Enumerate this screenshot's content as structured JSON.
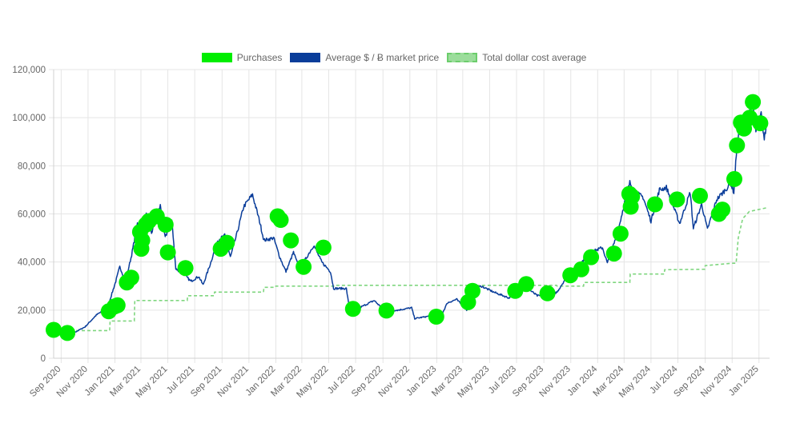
{
  "legend": {
    "purchases": "Purchases",
    "price": "Average $ / Ƀ market price",
    "cost": "Total dollar cost average"
  },
  "colors": {
    "purchases": "#00ee00",
    "price": "#0a3d9a",
    "cost": "#7fd67f",
    "grid": "#e5e5e5"
  },
  "chart_data": {
    "type": "line",
    "ylim": [
      0,
      120000
    ],
    "yticks": [
      0,
      20000,
      40000,
      60000,
      80000,
      100000,
      120000
    ],
    "ytick_labels": [
      "0",
      "20,000",
      "40,000",
      "60,000",
      "80,000",
      "100,000",
      "120,000"
    ],
    "x_range": [
      "2020-08-15",
      "2025-01-25"
    ],
    "xtick_labels": [
      {
        "date": "2020-09-01",
        "label": "Sep 2020"
      },
      {
        "date": "2020-11-01",
        "label": "Nov 2020"
      },
      {
        "date": "2021-01-01",
        "label": "Jan 2021"
      },
      {
        "date": "2021-03-01",
        "label": "Mar 2021"
      },
      {
        "date": "2021-05-01",
        "label": "May 2021"
      },
      {
        "date": "2021-07-01",
        "label": "Jul 2021"
      },
      {
        "date": "2021-09-01",
        "label": "Sep 2021"
      },
      {
        "date": "2021-11-01",
        "label": "Nov 2021"
      },
      {
        "date": "2022-01-01",
        "label": "Jan 2022"
      },
      {
        "date": "2022-03-01",
        "label": "Mar 2022"
      },
      {
        "date": "2022-05-01",
        "label": "May 2022"
      },
      {
        "date": "2022-07-01",
        "label": "Jul 2022"
      },
      {
        "date": "2022-09-01",
        "label": "Sep 2022"
      },
      {
        "date": "2022-11-01",
        "label": "Nov 2022"
      },
      {
        "date": "2023-01-01",
        "label": "Jan 2023"
      },
      {
        "date": "2023-03-01",
        "label": "Mar 2023"
      },
      {
        "date": "2023-05-01",
        "label": "May 2023"
      },
      {
        "date": "2023-07-01",
        "label": "Jul 2023"
      },
      {
        "date": "2023-09-01",
        "label": "Sep 2023"
      },
      {
        "date": "2023-11-01",
        "label": "Nov 2023"
      },
      {
        "date": "2024-01-01",
        "label": "Jan 2024"
      },
      {
        "date": "2024-03-01",
        "label": "Mar 2024"
      },
      {
        "date": "2024-05-01",
        "label": "May 2024"
      },
      {
        "date": "2024-07-01",
        "label": "Jul 2024"
      },
      {
        "date": "2024-09-01",
        "label": "Sep 2024"
      },
      {
        "date": "2024-11-01",
        "label": "Nov 2024"
      },
      {
        "date": "2025-01-01",
        "label": "Jan 2025"
      }
    ],
    "series": [
      {
        "name": "Average $ / Ƀ market price",
        "type": "line",
        "points": [
          [
            "2020-08-15",
            11800
          ],
          [
            "2020-09-05",
            10200
          ],
          [
            "2020-10-01",
            10700
          ],
          [
            "2020-10-25",
            13000
          ],
          [
            "2020-11-20",
            18000
          ],
          [
            "2020-12-15",
            21000
          ],
          [
            "2021-01-03",
            32000
          ],
          [
            "2021-01-12",
            38000
          ],
          [
            "2021-01-25",
            32000
          ],
          [
            "2021-02-08",
            43000
          ],
          [
            "2021-02-21",
            56000
          ],
          [
            "2021-02-28",
            45000
          ],
          [
            "2021-03-13",
            60000
          ],
          [
            "2021-03-25",
            52000
          ],
          [
            "2021-04-14",
            63500
          ],
          [
            "2021-04-25",
            50000
          ],
          [
            "2021-05-10",
            58000
          ],
          [
            "2021-05-19",
            37000
          ],
          [
            "2021-06-01",
            36000
          ],
          [
            "2021-06-22",
            32000
          ],
          [
            "2021-07-10",
            34000
          ],
          [
            "2021-07-20",
            30500
          ],
          [
            "2021-08-05",
            39000
          ],
          [
            "2021-08-22",
            49000
          ],
          [
            "2021-09-07",
            51000
          ],
          [
            "2021-09-20",
            42000
          ],
          [
            "2021-10-05",
            52000
          ],
          [
            "2021-10-20",
            63000
          ],
          [
            "2021-11-09",
            68000
          ],
          [
            "2021-11-25",
            57000
          ],
          [
            "2021-12-05",
            49000
          ],
          [
            "2021-12-27",
            50000
          ],
          [
            "2022-01-10",
            42000
          ],
          [
            "2022-01-24",
            36000
          ],
          [
            "2022-02-10",
            44000
          ],
          [
            "2022-02-24",
            37000
          ],
          [
            "2022-03-28",
            47000
          ],
          [
            "2022-04-15",
            40000
          ],
          [
            "2022-05-05",
            36000
          ],
          [
            "2022-05-12",
            29000
          ],
          [
            "2022-06-10",
            29000
          ],
          [
            "2022-06-18",
            19000
          ],
          [
            "2022-07-10",
            21000
          ],
          [
            "2022-08-12",
            24000
          ],
          [
            "2022-09-05",
            19800
          ],
          [
            "2022-10-05",
            20000
          ],
          [
            "2022-11-05",
            21000
          ],
          [
            "2022-11-12",
            16500
          ],
          [
            "2022-12-15",
            17500
          ],
          [
            "2023-01-10",
            17200
          ],
          [
            "2023-01-25",
            23000
          ],
          [
            "2023-02-15",
            24500
          ],
          [
            "2023-03-10",
            20000
          ],
          [
            "2023-03-20",
            28000
          ],
          [
            "2023-04-12",
            30000
          ],
          [
            "2023-05-10",
            27500
          ],
          [
            "2023-06-15",
            25000
          ],
          [
            "2023-06-25",
            30500
          ],
          [
            "2023-07-15",
            30500
          ],
          [
            "2023-08-17",
            26000
          ],
          [
            "2023-09-10",
            25800
          ],
          [
            "2023-10-01",
            27500
          ],
          [
            "2023-10-25",
            34500
          ],
          [
            "2023-11-15",
            37000
          ],
          [
            "2023-12-10",
            43500
          ],
          [
            "2024-01-12",
            46000
          ],
          [
            "2024-01-23",
            39500
          ],
          [
            "2024-02-15",
            52000
          ],
          [
            "2024-03-05",
            67000
          ],
          [
            "2024-03-14",
            73000
          ],
          [
            "2024-03-25",
            69000
          ],
          [
            "2024-04-13",
            67000
          ],
          [
            "2024-05-01",
            57000
          ],
          [
            "2024-05-20",
            70000
          ],
          [
            "2024-06-05",
            71000
          ],
          [
            "2024-06-25",
            61000
          ],
          [
            "2024-07-05",
            56000
          ],
          [
            "2024-07-29",
            69000
          ],
          [
            "2024-08-05",
            54000
          ],
          [
            "2024-08-24",
            64000
          ],
          [
            "2024-09-06",
            53500
          ],
          [
            "2024-09-27",
            66000
          ],
          [
            "2024-10-29",
            72500
          ],
          [
            "2024-11-05",
            69000
          ],
          [
            "2024-11-12",
            89000
          ],
          [
            "2024-11-22",
            98500
          ],
          [
            "2024-12-05",
            100000
          ],
          [
            "2024-12-17",
            106500
          ],
          [
            "2024-12-25",
            94000
          ],
          [
            "2025-01-06",
            101500
          ],
          [
            "2025-01-13",
            91000
          ],
          [
            "2025-01-17",
            96000
          ]
        ]
      },
      {
        "name": "Total dollar cost average",
        "type": "step",
        "points": [
          [
            "2020-08-15",
            11500
          ],
          [
            "2020-12-20",
            11500
          ],
          [
            "2020-12-21",
            15500
          ],
          [
            "2021-02-14",
            15500
          ],
          [
            "2021-02-15",
            24000
          ],
          [
            "2021-06-14",
            24000
          ],
          [
            "2021-06-15",
            26000
          ],
          [
            "2021-08-14",
            26000
          ],
          [
            "2021-08-15",
            27500
          ],
          [
            "2021-12-04",
            27500
          ],
          [
            "2021-12-05",
            29500
          ],
          [
            "2021-12-31",
            29500
          ],
          [
            "2022-01-01",
            30000
          ],
          [
            "2022-05-14",
            30000
          ],
          [
            "2022-05-15",
            30300
          ],
          [
            "2023-09-30",
            30300
          ],
          [
            "2023-10-01",
            30000
          ],
          [
            "2023-11-30",
            30000
          ],
          [
            "2023-12-01",
            31500
          ],
          [
            "2024-03-14",
            31500
          ],
          [
            "2024-03-15",
            35000
          ],
          [
            "2024-05-31",
            35000
          ],
          [
            "2024-06-01",
            36800
          ],
          [
            "2024-08-31",
            37000
          ],
          [
            "2024-09-01",
            38500
          ],
          [
            "2024-10-31",
            39500
          ],
          [
            "2024-11-10",
            39500
          ],
          [
            "2024-11-15",
            50000
          ],
          [
            "2024-11-25",
            58000
          ],
          [
            "2024-12-10",
            61000
          ],
          [
            "2025-01-17",
            62500
          ]
        ]
      },
      {
        "name": "Purchases",
        "type": "scatter",
        "points": [
          [
            "2020-08-15",
            11800
          ],
          [
            "2020-09-15",
            10500
          ],
          [
            "2020-12-18",
            19500
          ],
          [
            "2020-12-31",
            21500
          ],
          [
            "2021-01-07",
            22000
          ],
          [
            "2021-01-28",
            31500
          ],
          [
            "2021-02-07",
            33500
          ],
          [
            "2021-02-27",
            52500
          ],
          [
            "2021-03-02",
            45500
          ],
          [
            "2021-03-04",
            49000
          ],
          [
            "2021-03-12",
            55500
          ],
          [
            "2021-03-19",
            57000
          ],
          [
            "2021-04-06",
            59000
          ],
          [
            "2021-04-26",
            55500
          ],
          [
            "2021-05-01",
            44000
          ],
          [
            "2021-06-10",
            37500
          ],
          [
            "2021-08-29",
            45500
          ],
          [
            "2021-09-12",
            48000
          ],
          [
            "2022-01-05",
            59000
          ],
          [
            "2022-01-12",
            57500
          ],
          [
            "2022-02-04",
            49000
          ],
          [
            "2022-03-05",
            38000
          ],
          [
            "2022-04-19",
            46000
          ],
          [
            "2022-06-25",
            20500
          ],
          [
            "2022-09-09",
            19800
          ],
          [
            "2022-12-31",
            17300
          ],
          [
            "2023-03-13",
            23300
          ],
          [
            "2023-03-23",
            28000
          ],
          [
            "2023-06-28",
            28000
          ],
          [
            "2023-07-23",
            30800
          ],
          [
            "2023-09-09",
            27000
          ],
          [
            "2023-10-31",
            34500
          ],
          [
            "2023-11-25",
            37000
          ],
          [
            "2023-12-17",
            42000
          ],
          [
            "2024-02-07",
            43500
          ],
          [
            "2024-02-22",
            51800
          ],
          [
            "2024-03-13",
            68300
          ],
          [
            "2024-03-16",
            63000
          ],
          [
            "2024-03-19",
            67200
          ],
          [
            "2024-05-10",
            64000
          ],
          [
            "2024-06-29",
            66000
          ],
          [
            "2024-08-20",
            67500
          ],
          [
            "2024-10-02",
            60000
          ],
          [
            "2024-10-10",
            61800
          ],
          [
            "2024-11-06",
            74500
          ],
          [
            "2024-11-12",
            88500
          ],
          [
            "2024-11-21",
            98000
          ],
          [
            "2024-11-28",
            95500
          ],
          [
            "2024-12-11",
            100000
          ],
          [
            "2024-12-18",
            106500
          ],
          [
            "2025-01-04",
            97700
          ]
        ]
      }
    ],
    "grid": true,
    "legend_position": "top-center"
  }
}
